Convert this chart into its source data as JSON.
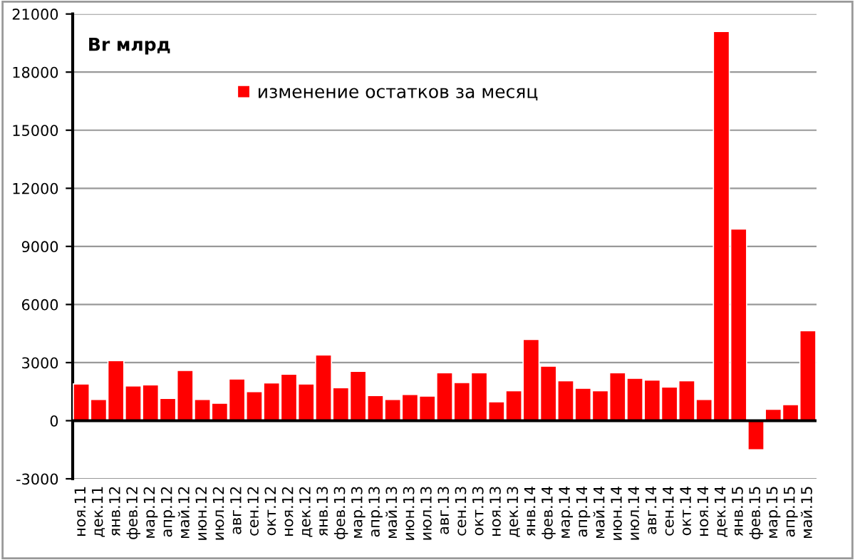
{
  "chart_data": {
    "type": "bar",
    "ylabel": "Br млрд",
    "categories": [
      "ноя.11",
      "дек.11",
      "янв.12",
      "фев.12",
      "мар.12",
      "апр.12",
      "май.12",
      "июн.12",
      "июл.12",
      "авг.12",
      "сен.12",
      "окт.12",
      "ноя.12",
      "дек.12",
      "янв.13",
      "фев.13",
      "мар.13",
      "апр.13",
      "май.13",
      "июн.13",
      "июл.13",
      "авг.13",
      "сен.13",
      "окт.13",
      "ноя.13",
      "дек.13",
      "янв.14",
      "фев.14",
      "мар.14",
      "апр.14",
      "май.14",
      "июн.14",
      "июл.14",
      "авг.14",
      "сен.14",
      "окт.14",
      "ноя.14",
      "дек.14",
      "янв.15",
      "фев.15",
      "мар.15",
      "апр.15",
      "май.15"
    ],
    "series": [
      {
        "name": "изменение остатков за месяц",
        "color": "#ff0000",
        "values": [
          1900,
          1100,
          3100,
          1800,
          1850,
          1150,
          2600,
          1100,
          900,
          2150,
          1500,
          1950,
          2400,
          1900,
          3400,
          1700,
          2550,
          1300,
          1100,
          1350,
          1270,
          2480,
          1970,
          2480,
          980,
          1550,
          4200,
          2820,
          2060,
          1680,
          1550,
          2480,
          2190,
          2100,
          1740,
          2060,
          1100,
          20100,
          9900,
          -1500,
          590,
          830,
          4650
        ]
      }
    ],
    "ylim": [
      -3000,
      21000
    ],
    "yticks": [
      -3000,
      0,
      3000,
      6000,
      9000,
      12000,
      15000,
      18000,
      21000
    ],
    "grid": "y",
    "legend": "top"
  }
}
